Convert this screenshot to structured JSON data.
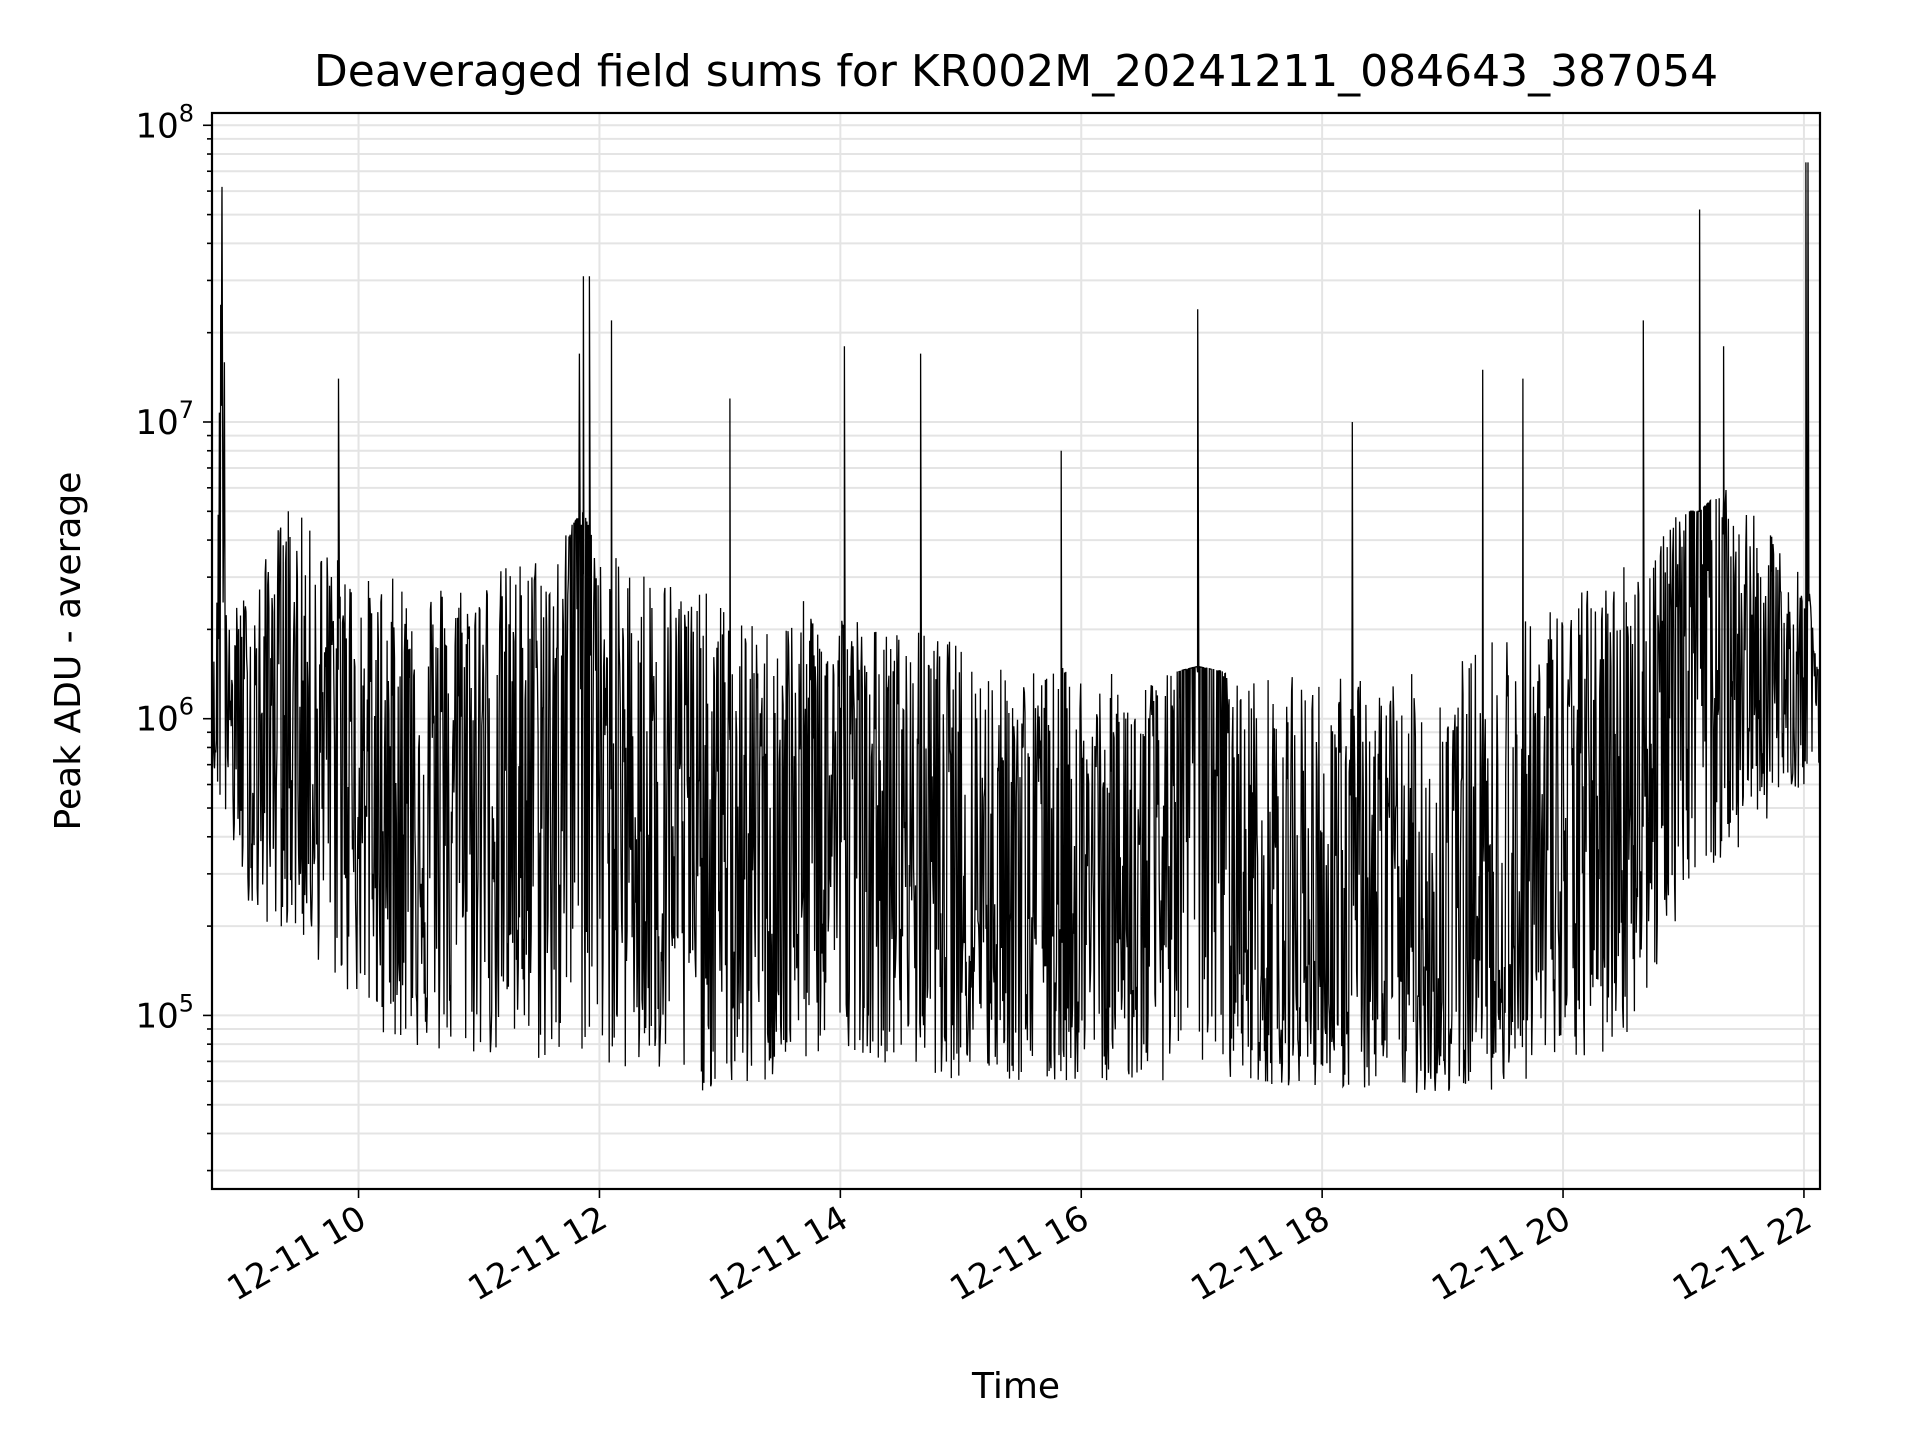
{
  "chart_data": {
    "type": "line",
    "title": "Deaveraged field sums for KR002M_20241211_084643_387054",
    "xlabel": "Time",
    "ylabel": "Peak ADU - average",
    "yscale": "log",
    "ylim": [
      26000,
      110000000
    ],
    "xlim": [
      "2024-12-11 08:47",
      "2024-12-11 22:08"
    ],
    "grid": true,
    "line_color": "#000000",
    "x_ticks": [
      {
        "t": "2024-12-11 10:00",
        "label": "12-11 10"
      },
      {
        "t": "2024-12-11 12:00",
        "label": "12-11 12"
      },
      {
        "t": "2024-12-11 14:00",
        "label": "12-11 14"
      },
      {
        "t": "2024-12-11 16:00",
        "label": "12-11 16"
      },
      {
        "t": "2024-12-11 18:00",
        "label": "12-11 18"
      },
      {
        "t": "2024-12-11 20:00",
        "label": "12-11 20"
      },
      {
        "t": "2024-12-11 22:00",
        "label": "12-11 22"
      }
    ],
    "y_ticks": [
      {
        "value": 100000,
        "base": "10",
        "exp": "5"
      },
      {
        "value": 1000000,
        "base": "10",
        "exp": "6"
      },
      {
        "value": 10000000,
        "base": "10",
        "exp": "7"
      },
      {
        "value": 100000000,
        "base": "10",
        "exp": "8"
      }
    ],
    "series": [
      {
        "x": [
          "2024-12-11 08:47",
          "2024-12-11 08:49",
          "2024-12-11 08:52",
          "2024-12-11 08:55",
          "2024-12-11 09:00",
          "2024-12-11 09:10",
          "2024-12-11 09:20",
          "2024-12-11 09:30",
          "2024-12-11 09:40",
          "2024-12-11 09:50",
          "2024-12-11 10:00",
          "2024-12-11 10:10",
          "2024-12-11 10:20",
          "2024-12-11 10:40",
          "2024-12-11 11:00",
          "2024-12-11 11:20",
          "2024-12-11 11:40",
          "2024-12-11 11:52",
          "2024-12-11 12:00",
          "2024-12-11 12:20",
          "2024-12-11 12:40",
          "2024-12-11 13:00",
          "2024-12-11 13:20",
          "2024-12-11 13:40",
          "2024-12-11 14:00",
          "2024-12-11 14:20",
          "2024-12-11 14:40",
          "2024-12-11 15:00",
          "2024-12-11 15:20",
          "2024-12-11 15:40",
          "2024-12-11 16:00",
          "2024-12-11 16:20",
          "2024-12-11 16:40",
          "2024-12-11 16:58",
          "2024-12-11 17:20",
          "2024-12-11 17:40",
          "2024-12-11 18:00",
          "2024-12-11 18:20",
          "2024-12-11 18:40",
          "2024-12-11 19:00",
          "2024-12-11 19:20",
          "2024-12-11 19:40",
          "2024-12-11 20:00",
          "2024-12-11 20:20",
          "2024-12-11 20:40",
          "2024-12-11 21:00",
          "2024-12-11 21:08",
          "2024-12-11 21:20",
          "2024-12-11 21:40",
          "2024-12-11 22:00",
          "2024-12-11 22:02",
          "2024-12-11 22:05",
          "2024-12-11 22:08"
        ],
        "y": [
          1500000,
          800000,
          62000000,
          900000,
          1100000,
          600000,
          1800000,
          700000,
          900000,
          1200000,
          600000,
          400000,
          700000,
          500000,
          700000,
          500000,
          600000,
          31000000,
          500000,
          450000,
          450000,
          300000,
          350000,
          400000,
          500000,
          400000,
          350000,
          300000,
          300000,
          250000,
          250000,
          200000,
          220000,
          24000000,
          180000,
          170000,
          160000,
          150000,
          160000,
          150000,
          170000,
          200000,
          300000,
          500000,
          700000,
          1400000,
          52000000,
          1600000,
          1400000,
          1000000,
          75000000,
          1200000,
          1100000
        ],
        "y_low_envelope": [
          700000,
          600000,
          300000,
          400000,
          300000,
          200000,
          200000,
          180000,
          150000,
          120000,
          110000,
          90000,
          80000,
          70000,
          70000,
          70000,
          65000,
          70000,
          70000,
          60000,
          55000,
          55000,
          55000,
          65000,
          80000,
          70000,
          65000,
          60000,
          60000,
          55000,
          60000,
          60000,
          60000,
          65000,
          60000,
          58000,
          58000,
          55000,
          55000,
          53000,
          55000,
          60000,
          65000,
          70000,
          100000,
          250000,
          300000,
          300000,
          450000,
          600000,
          700000,
          700000,
          700000
        ],
        "y_high_envelope": [
          1700000,
          1500000,
          62000000,
          2000000,
          2500000,
          3000000,
          4500000,
          5000000,
          4000000,
          3500000,
          3000000,
          3000000,
          3000000,
          3000000,
          3000000,
          3500000,
          4000000,
          5000000,
          3500000,
          3500000,
          3000000,
          2500000,
          2000000,
          2500000,
          2500000,
          2000000,
          2000000,
          1800000,
          1500000,
          1500000,
          1500000,
          1400000,
          1400000,
          1500000,
          1400000,
          1400000,
          1400000,
          1400000,
          1400000,
          1500000,
          1800000,
          2500000,
          2500000,
          3000000,
          4000000,
          5000000,
          5000000,
          6000000,
          4500000,
          3000000,
          3000000,
          1800000,
          1500000
        ]
      }
    ],
    "spikes": [
      {
        "t": "2024-12-11 09:25",
        "y": 5000000
      },
      {
        "t": "2024-12-11 09:50",
        "y": 14000000
      },
      {
        "t": "2024-12-11 11:50",
        "y": 17000000
      },
      {
        "t": "2024-12-11 11:55",
        "y": 31000000
      },
      {
        "t": "2024-12-11 12:06",
        "y": 22000000
      },
      {
        "t": "2024-12-11 13:05",
        "y": 12000000
      },
      {
        "t": "2024-12-11 14:02",
        "y": 18000000
      },
      {
        "t": "2024-12-11 14:40",
        "y": 17000000
      },
      {
        "t": "2024-12-11 15:50",
        "y": 8000000
      },
      {
        "t": "2024-12-11 16:58",
        "y": 24000000
      },
      {
        "t": "2024-12-11 18:15",
        "y": 10000000
      },
      {
        "t": "2024-12-11 19:20",
        "y": 15000000
      },
      {
        "t": "2024-12-11 19:40",
        "y": 14000000
      },
      {
        "t": "2024-12-11 20:40",
        "y": 22000000
      },
      {
        "t": "2024-12-11 21:08",
        "y": 52000000
      },
      {
        "t": "2024-12-11 21:20",
        "y": 18000000
      },
      {
        "t": "2024-12-11 22:01",
        "y": 75000000
      }
    ]
  }
}
